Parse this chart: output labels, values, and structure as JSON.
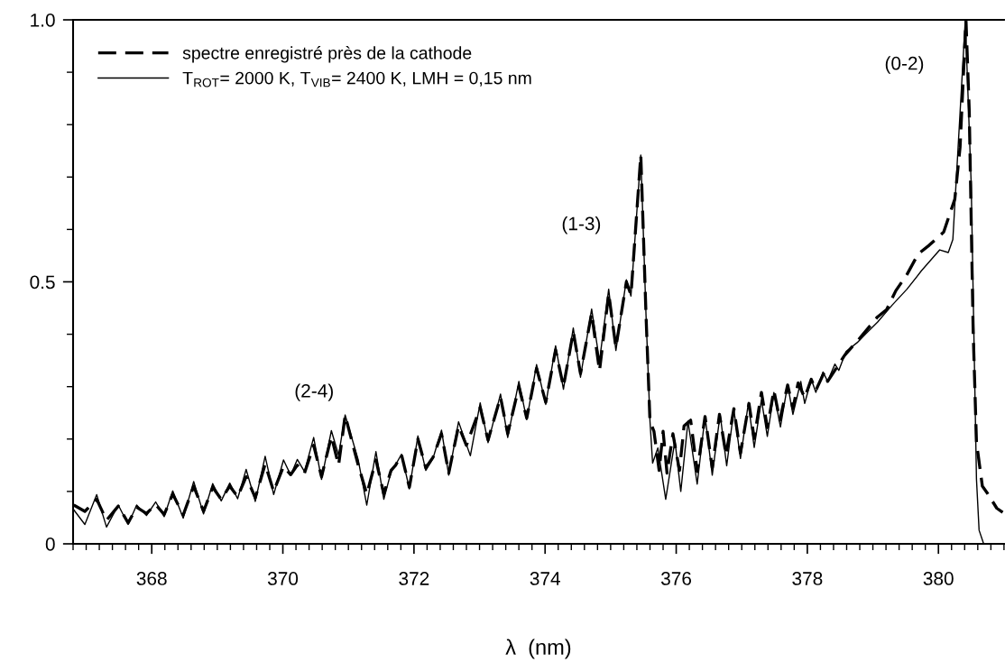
{
  "chart_data": {
    "type": "line",
    "xlabel": "λ  (nm)",
    "xlim": [
      366.8,
      381.0
    ],
    "xticks": [
      368,
      370,
      372,
      374,
      376,
      378,
      380
    ],
    "ylim": [
      0,
      1.0
    ],
    "yticks": [
      0,
      0.5,
      {
        "value": 1.0,
        "label": "1.0"
      }
    ],
    "legend": "top left",
    "annotations": [
      "(2-4)",
      "(1-3)",
      "(0-2)"
    ],
    "series": [
      {
        "name": "spectre enregistré près de la cathode",
        "color": "#000000",
        "line_style": "dashed",
        "x": [
          366.81,
          366.98,
          367.16,
          367.31,
          367.49,
          367.64,
          367.77,
          367.92,
          368.06,
          368.19,
          368.32,
          368.48,
          368.64,
          368.79,
          368.93,
          369.06,
          369.19,
          369.31,
          369.44,
          369.58,
          369.73,
          369.86,
          370.01,
          370.12,
          370.22,
          370.33,
          370.47,
          370.59,
          370.74,
          370.85,
          370.95,
          371.15,
          371.28,
          371.42,
          371.54,
          371.65,
          371.72,
          371.81,
          371.93,
          372.06,
          372.18,
          372.29,
          372.42,
          372.53,
          372.68,
          372.8,
          373.01,
          373.13,
          373.32,
          373.43,
          373.6,
          373.72,
          373.87,
          374.01,
          374.16,
          374.28,
          374.43,
          374.54,
          374.71,
          374.83,
          374.97,
          375.08,
          375.24,
          375.31,
          375.46,
          375.54,
          375.6,
          375.66,
          375.74,
          375.8,
          375.86,
          375.95,
          376.05,
          376.12,
          376.22,
          376.32,
          376.44,
          376.55,
          376.66,
          376.76,
          376.88,
          376.98,
          377.11,
          377.19,
          377.3,
          377.39,
          377.49,
          377.58,
          377.7,
          377.78,
          377.86,
          377.96,
          378.06,
          378.13,
          378.26,
          378.31,
          378.57,
          378.79,
          379.07,
          379.21,
          379.35,
          379.52,
          379.69,
          379.86,
          380.08,
          380.25,
          380.33,
          380.42,
          380.47,
          380.53,
          380.58,
          380.67,
          380.75,
          380.89,
          380.98
        ],
        "values": [
          0.074,
          0.062,
          0.085,
          0.045,
          0.072,
          0.04,
          0.07,
          0.058,
          0.075,
          0.056,
          0.095,
          0.055,
          0.11,
          0.062,
          0.108,
          0.085,
          0.11,
          0.09,
          0.128,
          0.088,
          0.152,
          0.1,
          0.148,
          0.132,
          0.15,
          0.135,
          0.188,
          0.128,
          0.205,
          0.15,
          0.245,
          0.15,
          0.095,
          0.16,
          0.095,
          0.14,
          0.15,
          0.17,
          0.108,
          0.2,
          0.145,
          0.165,
          0.21,
          0.135,
          0.225,
          0.188,
          0.26,
          0.198,
          0.28,
          0.21,
          0.3,
          0.24,
          0.335,
          0.27,
          0.37,
          0.3,
          0.405,
          0.325,
          0.44,
          0.33,
          0.478,
          0.375,
          0.5,
          0.475,
          0.742,
          0.435,
          0.234,
          0.215,
          0.14,
          0.215,
          0.135,
          0.21,
          0.14,
          0.225,
          0.236,
          0.138,
          0.243,
          0.145,
          0.247,
          0.17,
          0.258,
          0.173,
          0.268,
          0.201,
          0.289,
          0.222,
          0.293,
          0.236,
          0.303,
          0.258,
          0.307,
          0.279,
          0.314,
          0.293,
          0.328,
          0.31,
          0.36,
          0.391,
          0.433,
          0.447,
          0.483,
          0.514,
          0.553,
          0.57,
          0.595,
          0.658,
          0.757,
          1.0,
          0.827,
          0.405,
          0.194,
          0.11,
          0.096,
          0.068,
          0.06
        ]
      },
      {
        "name": "T$_{ROT}$= 2000 K, T$_{VIB}$= 2400 K, LMH = 0,15 nm",
        "color": "#000000",
        "line_style": "solid",
        "x": [
          366.81,
          366.98,
          367.16,
          367.31,
          367.49,
          367.64,
          367.77,
          367.92,
          368.06,
          368.19,
          368.32,
          368.48,
          368.64,
          368.79,
          368.93,
          369.06,
          369.19,
          369.31,
          369.44,
          369.58,
          369.73,
          369.86,
          370.01,
          370.12,
          370.22,
          370.33,
          370.47,
          370.59,
          370.74,
          370.85,
          370.95,
          371.15,
          371.28,
          371.42,
          371.54,
          371.65,
          371.72,
          371.81,
          371.93,
          372.06,
          372.18,
          372.29,
          372.42,
          372.53,
          372.68,
          372.86,
          373.01,
          373.13,
          373.32,
          373.43,
          373.6,
          373.72,
          373.87,
          374.01,
          374.16,
          374.28,
          374.43,
          374.54,
          374.71,
          374.83,
          374.97,
          375.08,
          375.24,
          375.31,
          375.46,
          375.54,
          375.6,
          375.64,
          375.72,
          375.84,
          375.98,
          376.07,
          376.18,
          376.32,
          376.44,
          376.55,
          376.67,
          376.77,
          376.88,
          376.98,
          377.1,
          377.19,
          377.3,
          377.39,
          377.49,
          377.59,
          377.7,
          377.78,
          377.9,
          377.96,
          378.06,
          378.13,
          378.24,
          378.31,
          378.42,
          378.48,
          378.59,
          378.76,
          378.9,
          379.07,
          379.29,
          379.52,
          379.74,
          380.02,
          380.15,
          380.22,
          380.3,
          380.41,
          380.5,
          380.55,
          380.58,
          380.62,
          380.69,
          381.0
        ],
        "values": [
          0.065,
          0.037,
          0.094,
          0.032,
          0.074,
          0.037,
          0.074,
          0.054,
          0.08,
          0.052,
          0.101,
          0.049,
          0.119,
          0.057,
          0.115,
          0.082,
          0.116,
          0.086,
          0.142,
          0.081,
          0.167,
          0.094,
          0.16,
          0.131,
          0.161,
          0.138,
          0.203,
          0.123,
          0.216,
          0.169,
          0.246,
          0.16,
          0.074,
          0.176,
          0.085,
          0.137,
          0.151,
          0.171,
          0.105,
          0.206,
          0.14,
          0.163,
          0.217,
          0.131,
          0.233,
          0.168,
          0.269,
          0.193,
          0.286,
          0.203,
          0.31,
          0.237,
          0.342,
          0.266,
          0.378,
          0.295,
          0.412,
          0.318,
          0.448,
          0.349,
          0.486,
          0.369,
          0.504,
          0.473,
          0.742,
          0.435,
          0.234,
          0.154,
          0.183,
          0.085,
          0.197,
          0.1,
          0.234,
          0.114,
          0.244,
          0.131,
          0.247,
          0.149,
          0.256,
          0.163,
          0.268,
          0.184,
          0.275,
          0.205,
          0.289,
          0.223,
          0.304,
          0.247,
          0.31,
          0.268,
          0.314,
          0.289,
          0.328,
          0.31,
          0.343,
          0.331,
          0.367,
          0.384,
          0.402,
          0.423,
          0.455,
          0.486,
          0.521,
          0.561,
          0.556,
          0.581,
          0.757,
          1.0,
          0.686,
          0.335,
          0.124,
          0.026,
          0,
          0
        ]
      }
    ]
  }
}
